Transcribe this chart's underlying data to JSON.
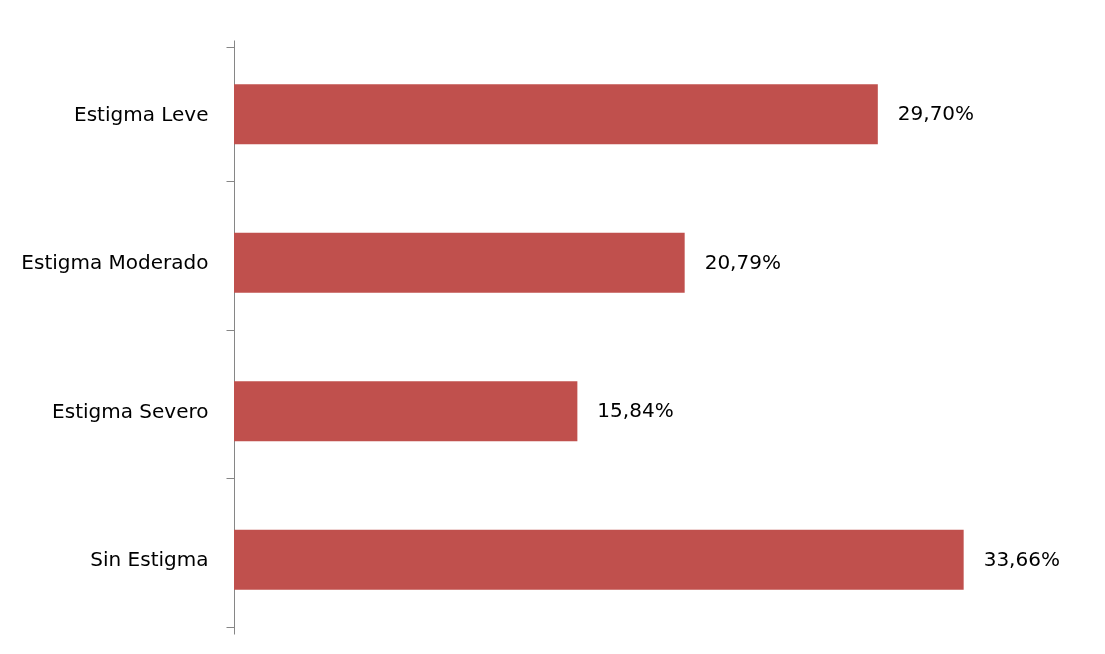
{
  "chart_data": {
    "type": "bar",
    "orientation": "horizontal",
    "categories": [
      "Estigma Leve",
      "Estigma Moderado",
      "Estigma Severo",
      "Sin Estigma"
    ],
    "values": [
      29.7,
      20.79,
      15.84,
      33.66
    ],
    "value_labels": [
      "29,70%",
      "20,79%",
      "15,84%",
      "33,66%"
    ],
    "color": "#c0504d",
    "grid": false
  }
}
